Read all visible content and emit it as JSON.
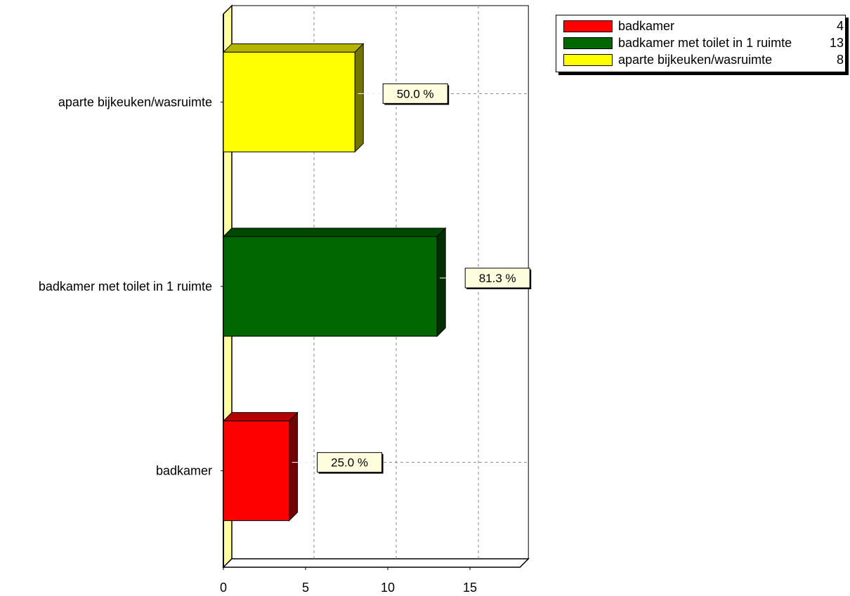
{
  "chart_data": {
    "type": "bar",
    "orientation": "horizontal",
    "categories": [
      "badkamer",
      "badkamer met toilet in 1 ruimte",
      "aparte bijkeuken/wasruimte"
    ],
    "values": [
      4,
      13,
      8
    ],
    "percent_labels": [
      "25.0 %",
      "81.3 %",
      "50.0 %"
    ],
    "colors": [
      "#ff0000",
      "#006600",
      "#ffff00"
    ],
    "xlim": [
      0,
      18
    ],
    "xticks": [
      0,
      5,
      10,
      15
    ],
    "xtick_labels": [
      "0",
      "5",
      "10",
      "15"
    ],
    "grid": true,
    "legend_position": "top-right",
    "legend": [
      {
        "name": "badkamer",
        "count": "4",
        "color": "#ff0000"
      },
      {
        "name": "badkamer met toilet in 1 ruimte",
        "count": "13",
        "color": "#006600"
      },
      {
        "name": "aparte bijkeuken/wasruimte",
        "count": "8",
        "color": "#ffff00"
      }
    ]
  }
}
